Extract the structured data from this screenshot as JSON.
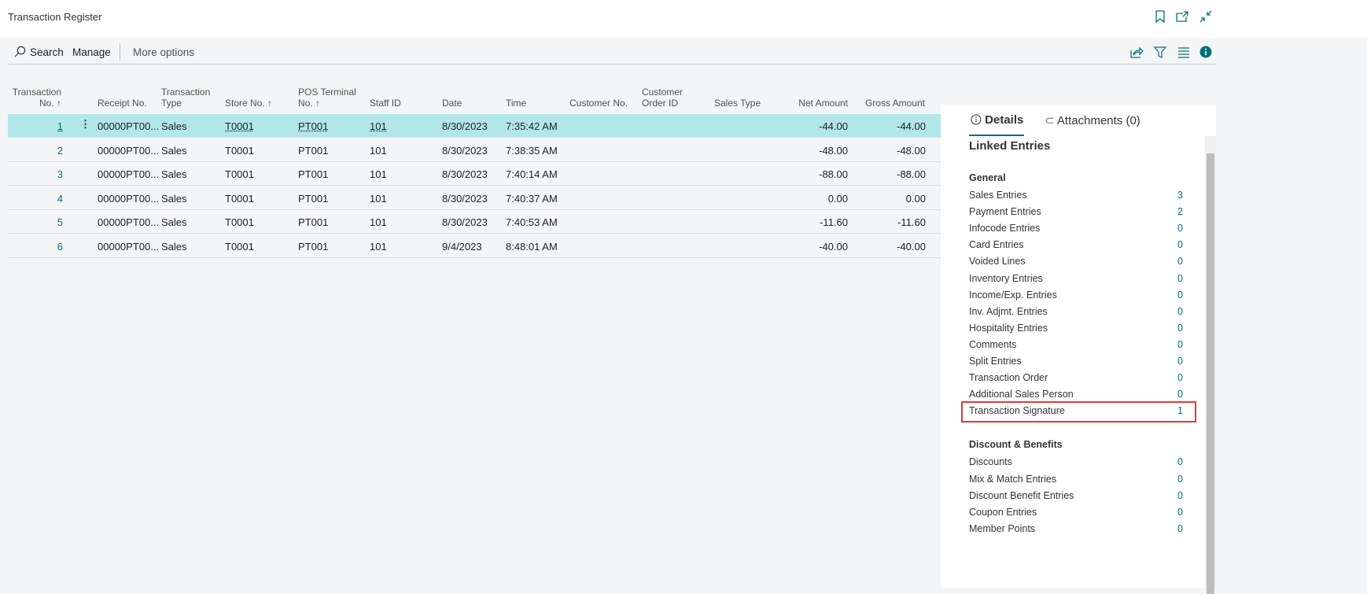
{
  "window": {
    "title": "Transaction Register"
  },
  "toolbar": {
    "search": "Search",
    "manage": "Manage",
    "more": "More options"
  },
  "columns": [
    "Transaction No.",
    "Receipt No.",
    "Transaction Type",
    "Store No.",
    "POS Terminal No.",
    "Staff ID",
    "Date",
    "Time",
    "Customer No.",
    "Customer Order ID",
    "Sales Type",
    "Net Amount",
    "Gross Amount"
  ],
  "header_lines": {
    "tn1": "Transaction",
    "tn2": "No. ↑",
    "rc": "Receipt No.",
    "tt1": "Transaction",
    "tt2": "Type",
    "st": "Store No. ↑",
    "pos1": "POS Terminal",
    "pos2": "No. ↑",
    "staff": "Staff ID",
    "date": "Date",
    "time": "Time",
    "cust": "Customer No.",
    "co1": "Customer",
    "co2": "Order ID",
    "stype": "Sales Type",
    "net": "Net Amount",
    "gross": "Gross Amount"
  },
  "rows": [
    {
      "no": "1",
      "receipt": "00000PT00...",
      "type": "Sales",
      "store": "T0001",
      "pos": "PT001",
      "staff": "101",
      "date": "8/30/2023",
      "time": "7:35:42 AM",
      "net": "-44.00",
      "gross": "-44.00",
      "selected": true
    },
    {
      "no": "2",
      "receipt": "00000PT00...",
      "type": "Sales",
      "store": "T0001",
      "pos": "PT001",
      "staff": "101",
      "date": "8/30/2023",
      "time": "7:38:35 AM",
      "net": "-48.00",
      "gross": "-48.00"
    },
    {
      "no": "3",
      "receipt": "00000PT00...",
      "type": "Sales",
      "store": "T0001",
      "pos": "PT001",
      "staff": "101",
      "date": "8/30/2023",
      "time": "7:40:14 AM",
      "net": "-88.00",
      "gross": "-88.00"
    },
    {
      "no": "4",
      "receipt": "00000PT00...",
      "type": "Sales",
      "store": "T0001",
      "pos": "PT001",
      "staff": "101",
      "date": "8/30/2023",
      "time": "7:40:37 AM",
      "net": "0.00",
      "gross": "0.00"
    },
    {
      "no": "5",
      "receipt": "00000PT00...",
      "type": "Sales",
      "store": "T0001",
      "pos": "PT001",
      "staff": "101",
      "date": "8/30/2023",
      "time": "7:40:53 AM",
      "net": "-11.60",
      "gross": "-11.60"
    },
    {
      "no": "6",
      "receipt": "00000PT00...",
      "type": "Sales",
      "store": "T0001",
      "pos": "PT001",
      "staff": "101",
      "date": "9/4/2023",
      "time": "8:48:01 AM",
      "net": "-40.00",
      "gross": "-40.00"
    }
  ],
  "factbox": {
    "tabs": [
      "Details",
      "Attachments (0)"
    ],
    "heading": "Linked Entries",
    "general": {
      "title": "General",
      "items": [
        {
          "label": "Sales Entries",
          "value": "3"
        },
        {
          "label": "Payment Entries",
          "value": "2"
        },
        {
          "label": "Infocode Entries",
          "value": "0"
        },
        {
          "label": "Card Entries",
          "value": "0"
        },
        {
          "label": "Voided Lines",
          "value": "0"
        },
        {
          "label": "Inventory Entries",
          "value": "0"
        },
        {
          "label": "Income/Exp. Entries",
          "value": "0"
        },
        {
          "label": "Inv. Adjmt.  Entries",
          "value": "0"
        },
        {
          "label": "Hospitality Entries",
          "value": "0"
        },
        {
          "label": "Comments",
          "value": "0"
        },
        {
          "label": "Split Entries",
          "value": "0"
        },
        {
          "label": "Transaction Order",
          "value": "0"
        },
        {
          "label": "Additional Sales Person",
          "value": "0"
        },
        {
          "label": "Transaction Signature",
          "value": "1",
          "highlighted": true
        }
      ]
    },
    "discount": {
      "title": "Discount & Benefits",
      "items": [
        {
          "label": "Discounts",
          "value": "0"
        },
        {
          "label": "Mix & Match Entries",
          "value": "0"
        },
        {
          "label": "Discount Benefit Entries",
          "value": "0"
        },
        {
          "label": "Coupon Entries",
          "value": "0"
        },
        {
          "label": "Member Points",
          "value": "0"
        }
      ]
    }
  },
  "colors": {
    "accent": "#00707a",
    "selected_row": "#b2e7ea",
    "highlight_box": "#e53935"
  }
}
